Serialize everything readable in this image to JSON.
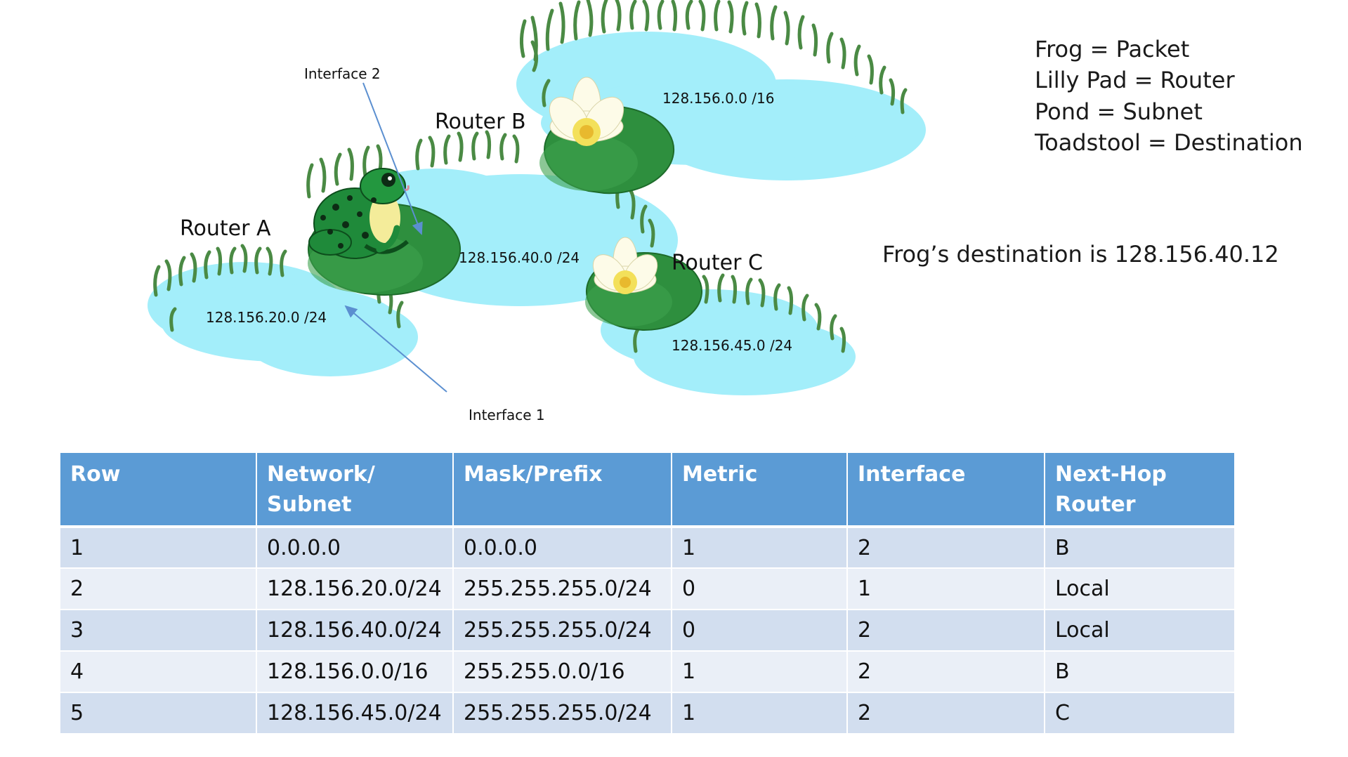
{
  "diagram": {
    "routers": [
      {
        "label": "Router A"
      },
      {
        "label": "Router B"
      },
      {
        "label": "Router C"
      }
    ],
    "subnets": [
      {
        "label": "128.156.0.0 /16"
      },
      {
        "label": "128.156.40.0 /24"
      },
      {
        "label": "128.156.20.0 /24"
      },
      {
        "label": "128.156.45.0 /24"
      }
    ],
    "interfaces": [
      {
        "label": "Interface 2"
      },
      {
        "label": "Interface 1"
      }
    ],
    "colors": {
      "pond": "#a3eefa",
      "lily_pad": "#2e8f3e",
      "grass": "#4a8a44",
      "frog": "#1f8a3a",
      "arrow": "#5b8fd0"
    }
  },
  "legend": [
    "Frog = Packet",
    "Lilly Pad = Router",
    "Pond = Subnet",
    "Toadstool = Destination"
  ],
  "destination_text": "Frog’s destination is 128.156.40.12",
  "table": {
    "header_color": "#5b9bd5",
    "columns": [
      "Row",
      "Network/ Subnet",
      "Mask/Prefix",
      "Metric",
      "Interface",
      "Next-Hop Router"
    ],
    "rows": [
      [
        "1",
        "0.0.0.0",
        "0.0.0.0",
        "1",
        "2",
        "B"
      ],
      [
        "2",
        "128.156.20.0/24",
        "255.255.255.0/24",
        "0",
        "1",
        "Local"
      ],
      [
        "3",
        "128.156.40.0/24",
        "255.255.255.0/24",
        "0",
        "2",
        "Local"
      ],
      [
        "4",
        "128.156.0.0/16",
        "255.255.0.0/16",
        "1",
        "2",
        "B"
      ],
      [
        "5",
        "128.156.45.0/24",
        "255.255.255.0/24",
        "1",
        "2",
        "C"
      ]
    ]
  }
}
